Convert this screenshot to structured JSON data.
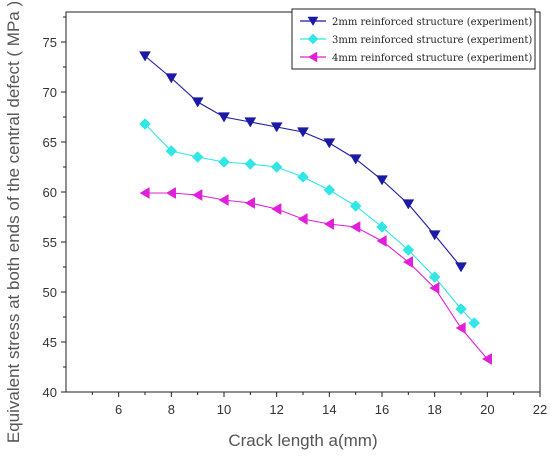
{
  "chart_data": {
    "type": "line",
    "title": "",
    "xlabel": "Crack length a(mm)",
    "ylabel": "Equivalent stress at both ends of the central defect ( MPa )",
    "xlim": [
      4,
      22
    ],
    "ylim": [
      40,
      78
    ],
    "xticks": [
      6,
      8,
      10,
      12,
      14,
      16,
      18,
      20,
      22
    ],
    "yticks": [
      40,
      45,
      50,
      55,
      60,
      65,
      70,
      75
    ],
    "grid": false,
    "legend_position": "top-right",
    "series": [
      {
        "name": "2mm reinforced structure (experiment)",
        "color": "#1a1aa6",
        "marker": "triangle-down",
        "x": [
          7,
          8,
          9,
          10,
          11,
          12,
          13,
          14,
          15,
          16,
          17,
          18,
          19
        ],
        "y": [
          73.6,
          71.4,
          69.0,
          67.5,
          67.0,
          66.5,
          66.0,
          64.9,
          63.3,
          61.2,
          58.8,
          55.7,
          52.5
        ]
      },
      {
        "name": "3mm reinforced structure (experiment)",
        "color": "#33e6e6",
        "marker": "diamond",
        "x": [
          7,
          8,
          9,
          10,
          11,
          12,
          13,
          14,
          15,
          16,
          17,
          18,
          19,
          19.5
        ],
        "y": [
          66.8,
          64.1,
          63.5,
          63.0,
          62.8,
          62.5,
          61.5,
          60.2,
          58.6,
          56.5,
          54.2,
          51.5,
          48.3,
          46.9
        ]
      },
      {
        "name": "4mm reinforced structure (experiment)",
        "color": "#e020d8",
        "marker": "triangle-left",
        "x": [
          7,
          8,
          9,
          10,
          11,
          12,
          13,
          14,
          15,
          16,
          17,
          18,
          19,
          20
        ],
        "y": [
          59.9,
          59.9,
          59.7,
          59.2,
          58.9,
          58.3,
          57.3,
          56.8,
          56.5,
          55.1,
          53.0,
          50.4,
          46.4,
          43.3
        ]
      }
    ]
  }
}
